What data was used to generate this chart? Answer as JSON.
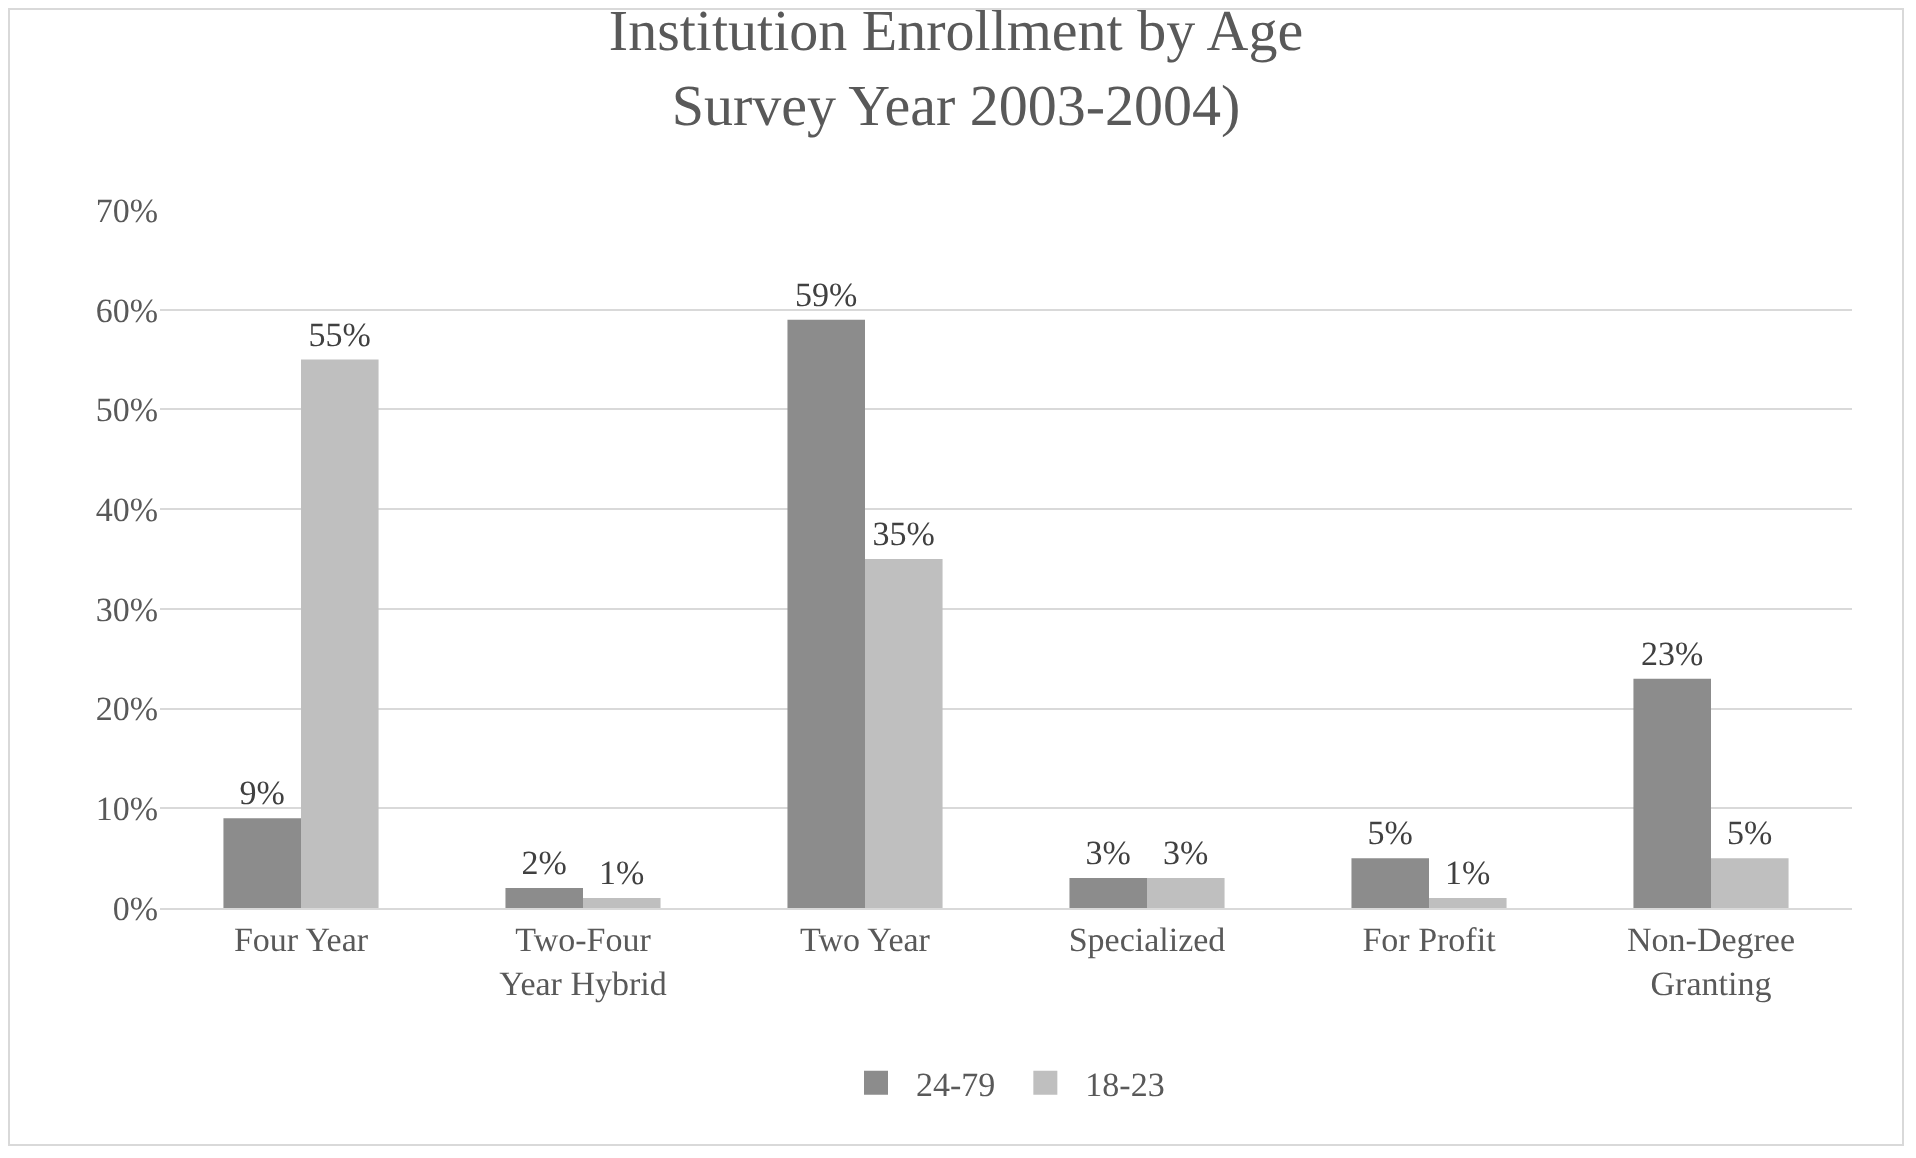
{
  "chart_data": {
    "type": "bar",
    "title": "Institution Enrollment by Age\nSurvey Year 2003-2004)",
    "categories": [
      "Four Year",
      "Two-Four\nYear Hybrid",
      "Two Year",
      "Specialized",
      "For Profit",
      "Non-Degree\nGranting"
    ],
    "series": [
      {
        "name": "24-79",
        "color": "#8c8c8c",
        "values": [
          9,
          2,
          59,
          3,
          5,
          23
        ],
        "value_labels": [
          "9%",
          "2%",
          "59%",
          "3%",
          "5%",
          "23%"
        ]
      },
      {
        "name": "18-23",
        "color": "#bfbfbf",
        "values": [
          55,
          1,
          35,
          3,
          1,
          5
        ],
        "value_labels": [
          "55%",
          "1%",
          "35%",
          "3%",
          "1%",
          "5%"
        ]
      }
    ],
    "ylim": [
      0,
      70
    ],
    "yticks": [
      {
        "value": 0,
        "label": "0%"
      },
      {
        "value": 10,
        "label": "10%"
      },
      {
        "value": 20,
        "label": "20%"
      },
      {
        "value": 30,
        "label": "30%"
      },
      {
        "value": 40,
        "label": "40%"
      },
      {
        "value": 50,
        "label": "50%"
      },
      {
        "value": 60,
        "label": "60%"
      },
      {
        "value": 70,
        "label": "70%"
      }
    ],
    "grid": "y",
    "legend": "bottom"
  }
}
